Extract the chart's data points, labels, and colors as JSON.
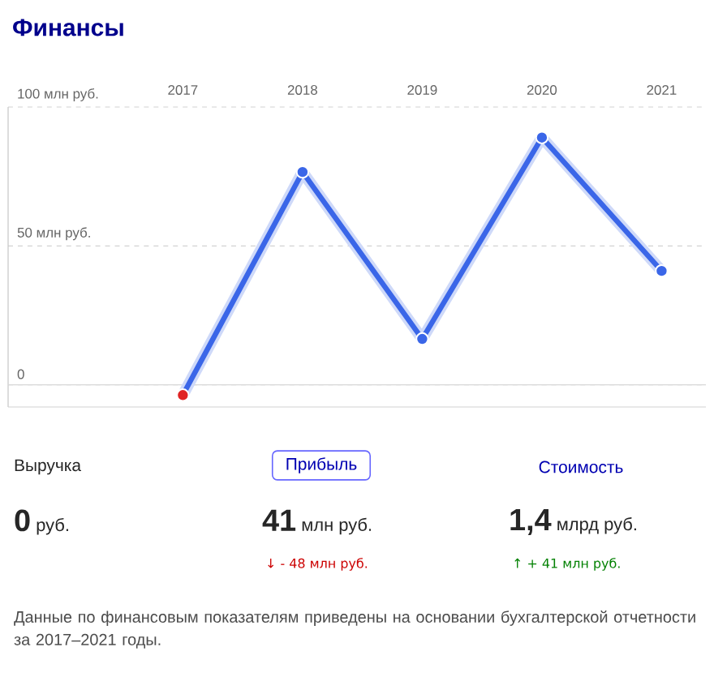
{
  "chart_data": {
    "type": "line",
    "title": "Финансы",
    "categories": [
      "2017",
      "2018",
      "2019",
      "2020",
      "2021"
    ],
    "values": [
      -3.7,
      76.6,
      16.5,
      89,
      41
    ],
    "color": "#3a66e8",
    "colors": [
      "#e02424",
      "#3a66e8",
      "#3a66e8",
      "#3a66e8",
      "#3a66e8"
    ],
    "marker": "circle",
    "line_style": "solid",
    "grid": "y",
    "ylim": [
      -8,
      100
    ],
    "yticks": [
      {
        "value": 0,
        "label": "0"
      },
      {
        "value": 50,
        "label": "50 млн руб."
      },
      {
        "value": 100,
        "label": "100 млн руб."
      }
    ],
    "ref_lines": [
      {
        "axis": "y",
        "value": 0,
        "color": "#d8d8d8",
        "line_style": "solid"
      }
    ],
    "annotations": [
      "Выручка",
      "**0** руб.",
      "Прибыль",
      "**41** млн руб.",
      "↓ - 48 млн руб.",
      "Стоимость",
      "**1,4** млрд руб.",
      "↑ + 41 млн руб.",
      "Данные по финансовым показателям приведены на основании бухгалтерской отчетности за 2017–2021 годы."
    ]
  }
}
